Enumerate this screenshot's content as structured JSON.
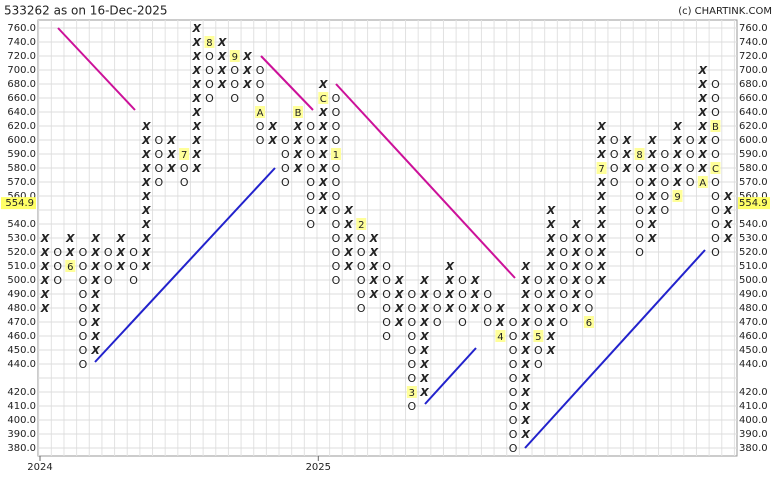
{
  "chart_data": {
    "type": "point_and_figure",
    "title": "533262 as on 16-Dec-2025",
    "credit": "(c) CHARTINK.COM",
    "current_price": 554.9,
    "x_color": "#2e8b2e",
    "o_color": "#e02020",
    "grid": true,
    "yticks": [
      {
        "value": 760,
        "label": "760.0"
      },
      {
        "value": 740,
        "label": "740.0"
      },
      {
        "value": 720,
        "label": "720.0"
      },
      {
        "value": 700,
        "label": "700.0"
      },
      {
        "value": 680,
        "label": "680.0"
      },
      {
        "value": 660,
        "label": "660.0"
      },
      {
        "value": 640,
        "label": "640.0"
      },
      {
        "value": 620,
        "label": "620.0"
      },
      {
        "value": 600,
        "label": "600.0"
      },
      {
        "value": 590,
        "label": "590.0"
      },
      {
        "value": 580,
        "label": "580.0"
      },
      {
        "value": 570,
        "label": "570.0"
      },
      {
        "value": 560,
        "label": "560.0"
      },
      {
        "value": 550,
        "label": null
      },
      {
        "value": 540,
        "label": "540.0"
      },
      {
        "value": 530,
        "label": "530.0"
      },
      {
        "value": 520,
        "label": "520.0"
      },
      {
        "value": 510,
        "label": "510.0"
      },
      {
        "value": 500,
        "label": "500.0"
      },
      {
        "value": 490,
        "label": "490.0"
      },
      {
        "value": 480,
        "label": "480.0"
      },
      {
        "value": 470,
        "label": "470.0"
      },
      {
        "value": 460,
        "label": "460.0"
      },
      {
        "value": 450,
        "label": "450.0"
      },
      {
        "value": 440,
        "label": "440.0"
      },
      {
        "value": 430,
        "label": null
      },
      {
        "value": 420,
        "label": "420.0"
      },
      {
        "value": 410,
        "label": "410.0"
      },
      {
        "value": 400,
        "label": "400.0"
      },
      {
        "value": 390,
        "label": "390.0"
      },
      {
        "value": 380,
        "label": "380.0"
      }
    ],
    "columns": [
      {
        "type": "X",
        "top": 530,
        "bottom": 480,
        "year": "2024"
      },
      {
        "type": "O",
        "top": 520,
        "bottom": 500
      },
      {
        "type": "X",
        "top": 530,
        "bottom": 510,
        "marks": [
          {
            "price": 510,
            "label": "6"
          }
        ]
      },
      {
        "type": "O",
        "top": 520,
        "bottom": 440
      },
      {
        "type": "X",
        "top": 530,
        "bottom": 450
      },
      {
        "type": "O",
        "top": 520,
        "bottom": 500
      },
      {
        "type": "X",
        "top": 530,
        "bottom": 510
      },
      {
        "type": "O",
        "top": 520,
        "bottom": 500
      },
      {
        "type": "X",
        "top": 620,
        "bottom": 510
      },
      {
        "type": "O",
        "top": 600,
        "bottom": 570
      },
      {
        "type": "X",
        "top": 600,
        "bottom": 580
      },
      {
        "type": "O",
        "top": 590,
        "bottom": 570,
        "marks": [
          {
            "price": 590,
            "label": "7"
          }
        ]
      },
      {
        "type": "X",
        "top": 760,
        "bottom": 580
      },
      {
        "type": "O",
        "top": 740,
        "bottom": 660,
        "marks": [
          {
            "price": 740,
            "label": "8"
          }
        ]
      },
      {
        "type": "X",
        "top": 740,
        "bottom": 680
      },
      {
        "type": "O",
        "top": 720,
        "bottom": 660,
        "marks": [
          {
            "price": 720,
            "label": "9"
          }
        ]
      },
      {
        "type": "X",
        "top": 720,
        "bottom": 680
      },
      {
        "type": "O",
        "top": 700,
        "bottom": 600,
        "marks": [
          {
            "price": 640,
            "label": "A"
          }
        ]
      },
      {
        "type": "X",
        "top": 620,
        "bottom": 600
      },
      {
        "type": "O",
        "top": 600,
        "bottom": 570
      },
      {
        "type": "X",
        "top": 640,
        "bottom": 580,
        "marks": [
          {
            "price": 640,
            "label": "B"
          }
        ]
      },
      {
        "type": "O",
        "top": 620,
        "bottom": 540
      },
      {
        "type": "X",
        "top": 680,
        "bottom": 550,
        "year": "2025",
        "marks": [
          {
            "price": 660,
            "label": "C"
          }
        ]
      },
      {
        "type": "O",
        "top": 660,
        "bottom": 500,
        "marks": [
          {
            "price": 590,
            "label": "1"
          }
        ]
      },
      {
        "type": "X",
        "top": 550,
        "bottom": 510
      },
      {
        "type": "O",
        "top": 540,
        "bottom": 480,
        "marks": [
          {
            "price": 540,
            "label": "2"
          }
        ]
      },
      {
        "type": "X",
        "top": 530,
        "bottom": 490
      },
      {
        "type": "O",
        "top": 510,
        "bottom": 460
      },
      {
        "type": "X",
        "top": 500,
        "bottom": 470
      },
      {
        "type": "O",
        "top": 490,
        "bottom": 410,
        "marks": [
          {
            "price": 420,
            "label": "3"
          }
        ]
      },
      {
        "type": "X",
        "top": 500,
        "bottom": 420
      },
      {
        "type": "O",
        "top": 490,
        "bottom": 470
      },
      {
        "type": "X",
        "top": 510,
        "bottom": 480
      },
      {
        "type": "O",
        "top": 500,
        "bottom": 470
      },
      {
        "type": "X",
        "top": 500,
        "bottom": 480
      },
      {
        "type": "O",
        "top": 490,
        "bottom": 470
      },
      {
        "type": "X",
        "top": 480,
        "bottom": 460,
        "marks": [
          {
            "price": 460,
            "label": "4"
          }
        ]
      },
      {
        "type": "O",
        "top": 470,
        "bottom": 380
      },
      {
        "type": "X",
        "top": 510,
        "bottom": 390
      },
      {
        "type": "O",
        "top": 500,
        "bottom": 440,
        "marks": [
          {
            "price": 460,
            "label": "5"
          }
        ]
      },
      {
        "type": "X",
        "top": 550,
        "bottom": 450
      },
      {
        "type": "O",
        "top": 530,
        "bottom": 470
      },
      {
        "type": "X",
        "top": 540,
        "bottom": 480
      },
      {
        "type": "O",
        "top": 530,
        "bottom": 470,
        "marks": [
          {
            "price": 470,
            "label": "6"
          }
        ]
      },
      {
        "type": "X",
        "top": 620,
        "bottom": 500,
        "marks": [
          {
            "price": 580,
            "label": "7"
          }
        ]
      },
      {
        "type": "O",
        "top": 600,
        "bottom": 570
      },
      {
        "type": "X",
        "top": 600,
        "bottom": 580
      },
      {
        "type": "O",
        "top": 590,
        "bottom": 520,
        "marks": [
          {
            "price": 590,
            "label": "8"
          }
        ]
      },
      {
        "type": "X",
        "top": 600,
        "bottom": 530
      },
      {
        "type": "O",
        "top": 590,
        "bottom": 550
      },
      {
        "type": "X",
        "top": 620,
        "bottom": 560,
        "marks": [
          {
            "price": 560,
            "label": "9"
          }
        ]
      },
      {
        "type": "O",
        "top": 600,
        "bottom": 570
      },
      {
        "type": "X",
        "top": 700,
        "bottom": 570,
        "marks": [
          {
            "price": 570,
            "label": "A"
          }
        ]
      },
      {
        "type": "O",
        "top": 680,
        "bottom": 520,
        "marks": [
          {
            "price": 620,
            "label": "B"
          },
          {
            "price": 580,
            "label": "C"
          }
        ]
      },
      {
        "type": "X",
        "top": 560,
        "bottom": 530
      }
    ]
  }
}
